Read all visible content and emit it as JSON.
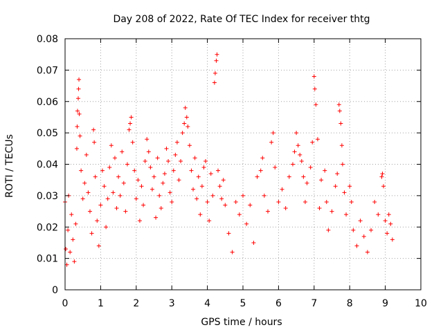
{
  "chart_data": {
    "type": "scatter",
    "title": "Day 208 of 2022, Rate Of TEC Index for receiver thtg",
    "xlabel": "GPS time / hours",
    "ylabel": "ROTI / TECUs",
    "xlim": [
      0,
      10
    ],
    "ylim": [
      0,
      0.08
    ],
    "x_ticks": [
      0,
      1,
      2,
      3,
      4,
      5,
      6,
      7,
      8,
      9,
      10
    ],
    "x_tick_labels": [
      "0",
      "1",
      "2",
      "3",
      "4",
      "5",
      "6",
      "7",
      "8",
      "9",
      "10"
    ],
    "y_ticks": [
      0,
      0.01,
      0.02,
      0.03,
      0.04,
      0.05,
      0.06,
      0.07,
      0.08
    ],
    "y_tick_labels": [
      "0",
      "0.01",
      "0.02",
      "0.03",
      "0.04",
      "0.05",
      "0.06",
      "0.07",
      "0.08"
    ],
    "grid": true,
    "marker": "+",
    "color": "#ff0000",
    "series": [
      {
        "name": "ROTI",
        "points": [
          [
            0.0,
            0.028
          ],
          [
            0.02,
            0.013
          ],
          [
            0.05,
            0.008
          ],
          [
            0.08,
            0.019
          ],
          [
            0.1,
            0.03
          ],
          [
            0.14,
            0.012
          ],
          [
            0.18,
            0.024
          ],
          [
            0.22,
            0.016
          ],
          [
            0.26,
            0.009
          ],
          [
            0.3,
            0.021
          ],
          [
            0.33,
            0.045
          ],
          [
            0.34,
            0.052
          ],
          [
            0.35,
            0.057
          ],
          [
            0.37,
            0.061
          ],
          [
            0.38,
            0.064
          ],
          [
            0.39,
            0.067
          ],
          [
            0.4,
            0.056
          ],
          [
            0.42,
            0.049
          ],
          [
            0.45,
            0.038
          ],
          [
            0.5,
            0.029
          ],
          [
            0.55,
            0.034
          ],
          [
            0.6,
            0.043
          ],
          [
            0.65,
            0.031
          ],
          [
            0.7,
            0.025
          ],
          [
            0.75,
            0.018
          ],
          [
            0.8,
            0.051
          ],
          [
            0.82,
            0.047
          ],
          [
            0.85,
            0.036
          ],
          [
            0.9,
            0.022
          ],
          [
            0.95,
            0.014
          ],
          [
            1.0,
            0.027
          ],
          [
            1.05,
            0.038
          ],
          [
            1.1,
            0.033
          ],
          [
            1.15,
            0.02
          ],
          [
            1.2,
            0.029
          ],
          [
            1.25,
            0.039
          ],
          [
            1.3,
            0.046
          ],
          [
            1.35,
            0.031
          ],
          [
            1.4,
            0.042
          ],
          [
            1.45,
            0.026
          ],
          [
            1.5,
            0.036
          ],
          [
            1.55,
            0.03
          ],
          [
            1.6,
            0.044
          ],
          [
            1.65,
            0.034
          ],
          [
            1.7,
            0.025
          ],
          [
            1.75,
            0.04
          ],
          [
            1.8,
            0.051
          ],
          [
            1.83,
            0.053
          ],
          [
            1.86,
            0.055
          ],
          [
            1.9,
            0.047
          ],
          [
            1.95,
            0.038
          ],
          [
            2.0,
            0.029
          ],
          [
            2.05,
            0.035
          ],
          [
            2.1,
            0.022
          ],
          [
            2.15,
            0.033
          ],
          [
            2.2,
            0.027
          ],
          [
            2.25,
            0.041
          ],
          [
            2.3,
            0.048
          ],
          [
            2.35,
            0.044
          ],
          [
            2.4,
            0.039
          ],
          [
            2.45,
            0.032
          ],
          [
            2.5,
            0.036
          ],
          [
            2.55,
            0.023
          ],
          [
            2.6,
            0.042
          ],
          [
            2.65,
            0.03
          ],
          [
            2.7,
            0.026
          ],
          [
            2.75,
            0.034
          ],
          [
            2.8,
            0.037
          ],
          [
            2.85,
            0.045
          ],
          [
            2.9,
            0.041
          ],
          [
            2.95,
            0.031
          ],
          [
            3.0,
            0.028
          ],
          [
            3.05,
            0.038
          ],
          [
            3.1,
            0.043
          ],
          [
            3.15,
            0.047
          ],
          [
            3.2,
            0.035
          ],
          [
            3.25,
            0.041
          ],
          [
            3.3,
            0.05
          ],
          [
            3.35,
            0.053
          ],
          [
            3.38,
            0.058
          ],
          [
            3.42,
            0.055
          ],
          [
            3.45,
            0.052
          ],
          [
            3.5,
            0.046
          ],
          [
            3.55,
            0.038
          ],
          [
            3.6,
            0.032
          ],
          [
            3.65,
            0.042
          ],
          [
            3.7,
            0.029
          ],
          [
            3.75,
            0.036
          ],
          [
            3.8,
            0.024
          ],
          [
            3.85,
            0.033
          ],
          [
            3.9,
            0.039
          ],
          [
            3.95,
            0.041
          ],
          [
            4.0,
            0.028
          ],
          [
            4.05,
            0.022
          ],
          [
            4.1,
            0.037
          ],
          [
            4.15,
            0.03
          ],
          [
            4.2,
            0.066
          ],
          [
            4.22,
            0.069
          ],
          [
            4.25,
            0.073
          ],
          [
            4.27,
            0.075
          ],
          [
            4.3,
            0.038
          ],
          [
            4.35,
            0.033
          ],
          [
            4.4,
            0.029
          ],
          [
            4.45,
            0.035
          ],
          [
            4.5,
            0.027
          ],
          [
            4.6,
            0.018
          ],
          [
            4.7,
            0.012
          ],
          [
            4.8,
            0.028
          ],
          [
            4.9,
            0.024
          ],
          [
            5.0,
            0.03
          ],
          [
            5.1,
            0.021
          ],
          [
            5.2,
            0.027
          ],
          [
            5.3,
            0.015
          ],
          [
            5.4,
            0.036
          ],
          [
            5.5,
            0.038
          ],
          [
            5.55,
            0.042
          ],
          [
            5.6,
            0.03
          ],
          [
            5.7,
            0.025
          ],
          [
            5.8,
            0.047
          ],
          [
            5.85,
            0.05
          ],
          [
            5.9,
            0.039
          ],
          [
            6.0,
            0.028
          ],
          [
            6.1,
            0.032
          ],
          [
            6.2,
            0.026
          ],
          [
            6.3,
            0.036
          ],
          [
            6.4,
            0.04
          ],
          [
            6.45,
            0.044
          ],
          [
            6.5,
            0.05
          ],
          [
            6.55,
            0.046
          ],
          [
            6.6,
            0.043
          ],
          [
            6.65,
            0.041
          ],
          [
            6.7,
            0.036
          ],
          [
            6.75,
            0.028
          ],
          [
            6.8,
            0.034
          ],
          [
            6.9,
            0.039
          ],
          [
            6.95,
            0.047
          ],
          [
            7.0,
            0.068
          ],
          [
            7.02,
            0.064
          ],
          [
            7.05,
            0.059
          ],
          [
            7.1,
            0.048
          ],
          [
            7.15,
            0.026
          ],
          [
            7.2,
            0.035
          ],
          [
            7.3,
            0.038
          ],
          [
            7.35,
            0.028
          ],
          [
            7.4,
            0.019
          ],
          [
            7.5,
            0.025
          ],
          [
            7.6,
            0.033
          ],
          [
            7.65,
            0.037
          ],
          [
            7.7,
            0.059
          ],
          [
            7.72,
            0.057
          ],
          [
            7.75,
            0.053
          ],
          [
            7.78,
            0.046
          ],
          [
            7.8,
            0.04
          ],
          [
            7.85,
            0.031
          ],
          [
            7.9,
            0.024
          ],
          [
            8.0,
            0.033
          ],
          [
            8.05,
            0.028
          ],
          [
            8.1,
            0.019
          ],
          [
            8.2,
            0.014
          ],
          [
            8.3,
            0.022
          ],
          [
            8.4,
            0.017
          ],
          [
            8.5,
            0.012
          ],
          [
            8.6,
            0.019
          ],
          [
            8.7,
            0.028
          ],
          [
            8.8,
            0.024
          ],
          [
            8.9,
            0.036
          ],
          [
            8.92,
            0.037
          ],
          [
            8.95,
            0.033
          ],
          [
            9.0,
            0.022
          ],
          [
            9.05,
            0.018
          ],
          [
            9.1,
            0.024
          ],
          [
            9.15,
            0.021
          ],
          [
            9.2,
            0.016
          ]
        ]
      }
    ]
  }
}
